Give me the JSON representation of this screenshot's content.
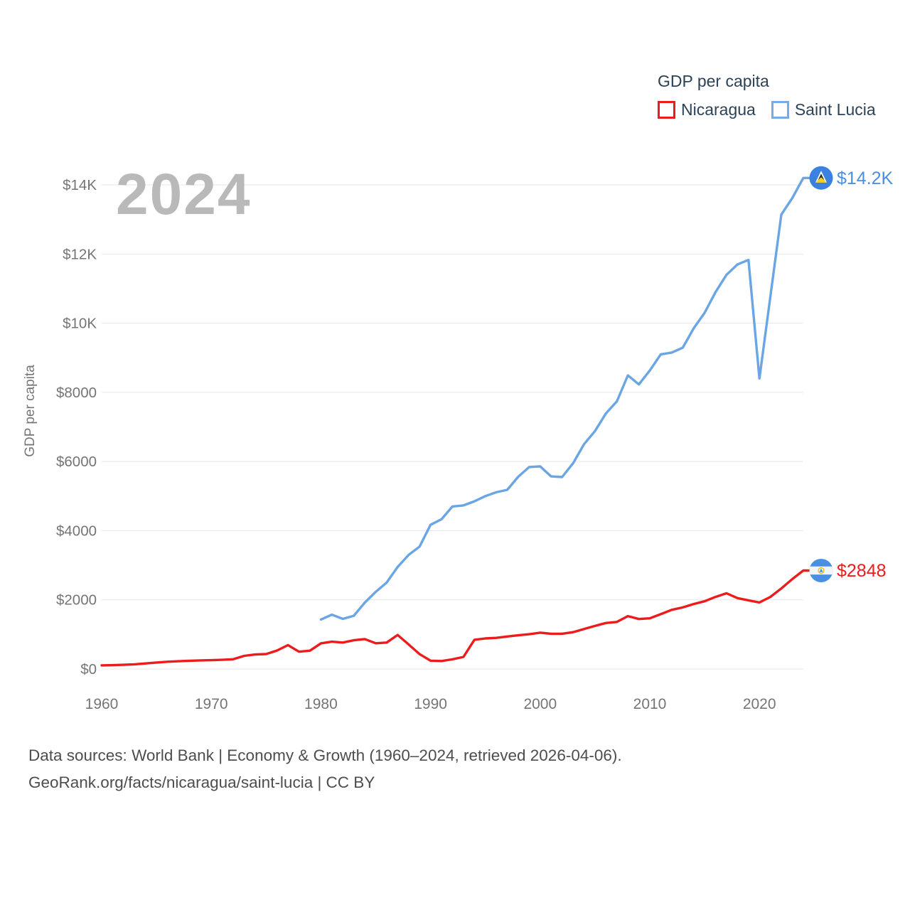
{
  "legend": {
    "title": "GDP per capita",
    "items": [
      {
        "label": "Nicaragua",
        "color": "#ed1c1c"
      },
      {
        "label": "Saint Lucia",
        "color": "#76abe8"
      }
    ]
  },
  "footer": {
    "line1": "Data sources: World Bank | Economy & Growth (1960–2024, retrieved 2026-04-06).",
    "line2": "GeoRank.org/facts/nicaragua/saint-lucia | CC BY"
  },
  "chart_data": {
    "type": "line",
    "title": "GDP per capita",
    "watermark": "2024",
    "xlabel": "",
    "ylabel": "GDP per capita",
    "ylim": [
      0,
      14000
    ],
    "xlim": [
      1960,
      2024
    ],
    "grid": "horizontal-only",
    "legend_position": "top-right",
    "y_ticks": [
      {
        "value": 0,
        "label": "$0"
      },
      {
        "value": 2000,
        "label": "$2000"
      },
      {
        "value": 4000,
        "label": "$4000"
      },
      {
        "value": 6000,
        "label": "$6000"
      },
      {
        "value": 8000,
        "label": "$8000"
      },
      {
        "value": 10000,
        "label": "$10K"
      },
      {
        "value": 12000,
        "label": "$12K"
      },
      {
        "value": 14000,
        "label": "$14K"
      }
    ],
    "x_ticks": [
      1960,
      1970,
      1980,
      1990,
      2000,
      2010,
      2020
    ],
    "series": [
      {
        "name": "Nicaragua",
        "color": "#ed1c1c",
        "label_color": "#ed1c1c",
        "dot_color": "#4a90e2",
        "flag": "nicaragua",
        "start_year": 1960,
        "end_year": 2024,
        "end_label": "$2848",
        "end_value": 2848,
        "values": [
          105,
          112,
          122,
          135,
          160,
          188,
          210,
          225,
          238,
          248,
          255,
          265,
          282,
          380,
          420,
          432,
          535,
          690,
          500,
          530,
          743,
          790,
          765,
          830,
          865,
          745,
          765,
          985,
          710,
          430,
          240,
          230,
          280,
          350,
          845,
          885,
          900,
          940,
          975,
          1005,
          1050,
          1020,
          1020,
          1065,
          1155,
          1245,
          1330,
          1360,
          1530,
          1445,
          1465,
          1585,
          1710,
          1780,
          1880,
          1960,
          2085,
          2190,
          2050,
          1985,
          1925,
          2085,
          2330,
          2600,
          2848
        ]
      },
      {
        "name": "Saint Lucia",
        "color": "#6aa5e4",
        "label_color": "#4a90e2",
        "dot_color": "#3b82e0",
        "flag": "saint-lucia",
        "start_year": 1980,
        "end_year": 2024,
        "end_label": "$14.2K",
        "end_value": 14200,
        "values": [
          1430,
          1570,
          1450,
          1540,
          1920,
          2230,
          2500,
          2950,
          3300,
          3540,
          4170,
          4330,
          4700,
          4730,
          4850,
          5000,
          5110,
          5180,
          5560,
          5840,
          5860,
          5570,
          5550,
          5950,
          6500,
          6880,
          7390,
          7740,
          8490,
          8230,
          8630,
          9100,
          9150,
          9290,
          9850,
          10300,
          10900,
          11400,
          11700,
          11830,
          8400,
          10770,
          13140,
          13620,
          14200
        ]
      }
    ]
  }
}
